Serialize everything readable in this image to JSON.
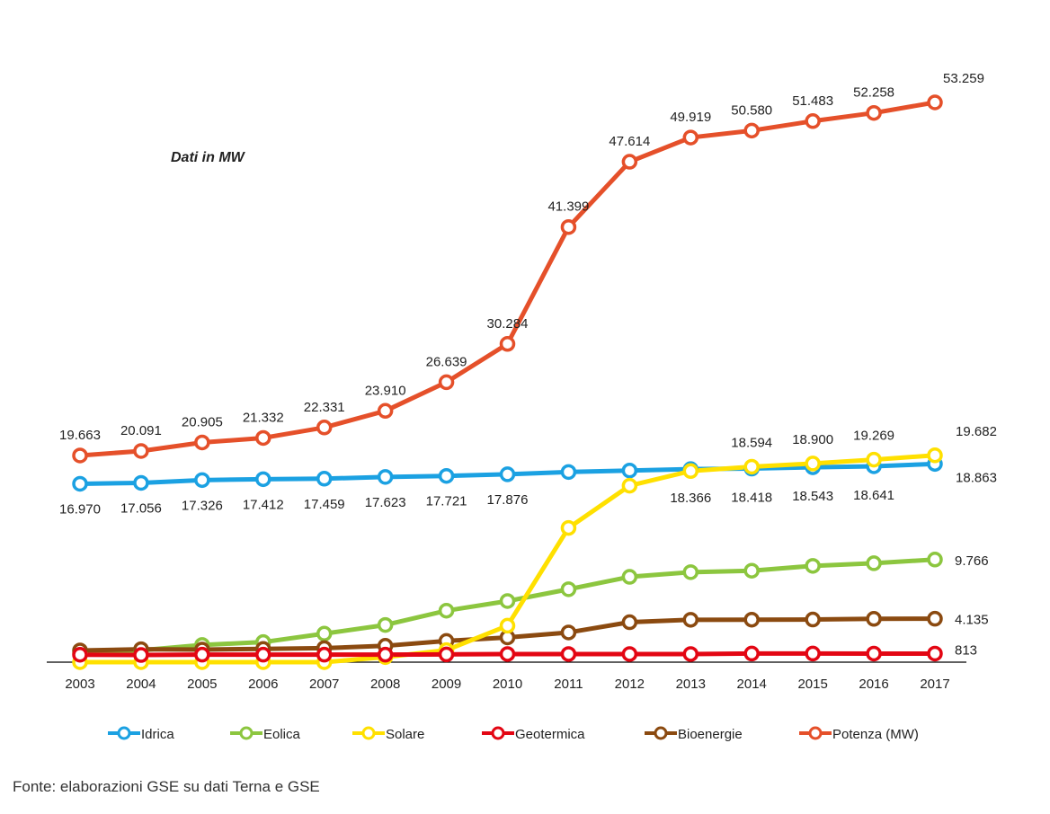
{
  "note": "Dati in MW",
  "source": "Fonte: elaborazioni GSE su dati Terna e GSE",
  "chart_data": {
    "type": "line",
    "title": "",
    "xlabel": "",
    "ylabel": "",
    "ylim": [
      0,
      57000
    ],
    "grid": false,
    "legend_position": "bottom",
    "x": [
      "2003",
      "2004",
      "2005",
      "2006",
      "2007",
      "2008",
      "2009",
      "2010",
      "2011",
      "2012",
      "2013",
      "2014",
      "2015",
      "2016",
      "2017"
    ],
    "series": [
      {
        "name": "Idrica",
        "color": "#1ba1e2",
        "values": [
          16970,
          17056,
          17326,
          17412,
          17459,
          17623,
          17721,
          17876,
          18092,
          18232,
          18366,
          18418,
          18543,
          18641,
          18863
        ],
        "labels": [
          "16.970",
          "17.056",
          "17.326",
          "17.412",
          "17.459",
          "17.623",
          "17.721",
          "17.876",
          "",
          "",
          "18.366",
          "18.418",
          "18.543",
          "18.641",
          "18.863"
        ]
      },
      {
        "name": "Eolica",
        "color": "#8cc63f",
        "values": [
          874,
          1131,
          1639,
          1908,
          2714,
          3538,
          4898,
          5814,
          6936,
          8119,
          8561,
          8703,
          9162,
          9410,
          9766
        ],
        "labels": [
          "",
          "",
          "",
          "",
          "",
          "",
          "",
          "",
          "",
          "",
          "",
          "",
          "",
          "",
          "9.766"
        ]
      },
      {
        "name": "Solare",
        "color": "#ffe000",
        "values": [
          0,
          0,
          0,
          0,
          0,
          483,
          1144,
          3470,
          12773,
          16790,
          18185,
          18594,
          18900,
          19269,
          19682
        ],
        "labels": [
          "",
          "",
          "",
          "",
          "",
          "",
          "",
          "",
          "",
          "",
          "",
          "18.594",
          "18.900",
          "19.269",
          "19.682"
        ]
      },
      {
        "name": "Geotermica",
        "color": "#e30613",
        "values": [
          707,
          681,
          711,
          711,
          711,
          711,
          737,
          772,
          772,
          772,
          773,
          821,
          821,
          815,
          813
        ],
        "labels": [
          "",
          "",
          "",
          "",
          "",
          "",
          "",
          "",
          "",
          "",
          "",
          "",
          "",
          "",
          "813"
        ]
      },
      {
        "name": "Bioenergie",
        "color": "#8b4a10",
        "values": [
          1112,
          1231,
          1201,
          1256,
          1336,
          1555,
          2019,
          2352,
          2825,
          3802,
          4033,
          4044,
          4057,
          4124,
          4135
        ],
        "labels": [
          "",
          "",
          "",
          "",
          "",
          "",
          "",
          "",
          "",
          "",
          "",
          "",
          "",
          "",
          "4.135"
        ]
      },
      {
        "name": "Potenza (MW)",
        "color": "#e5502a",
        "values": [
          19663,
          20091,
          20905,
          21332,
          22331,
          23910,
          26639,
          30284,
          41399,
          47614,
          49919,
          50580,
          51483,
          52258,
          53259
        ],
        "labels": [
          "19.663",
          "20.091",
          "20.905",
          "21.332",
          "22.331",
          "23.910",
          "26.639",
          "30.284",
          "41.399",
          "47.614",
          "49.919",
          "50.580",
          "51.483",
          "52.258",
          "53.259"
        ]
      }
    ]
  }
}
